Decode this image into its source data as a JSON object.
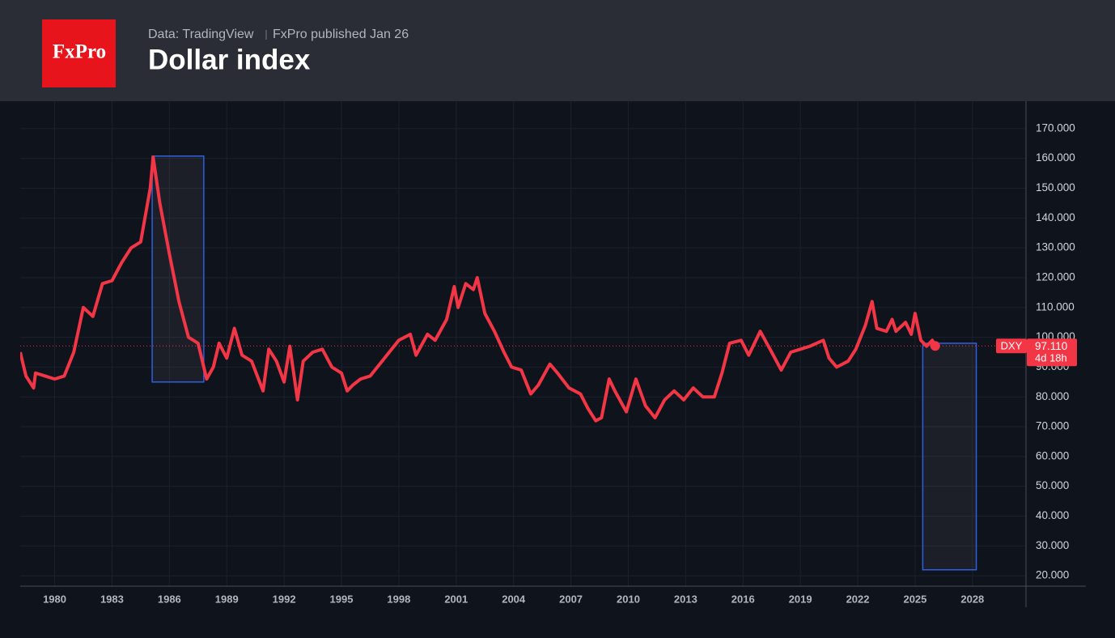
{
  "logo": "FxPro",
  "chart_data": {
    "type": "line",
    "source": "Data: TradingView",
    "subtitle": "FxPro published Jan 26",
    "title": "Dollar index",
    "xlim": [
      1978.2,
      2030.8
    ],
    "ylim": [
      16.5,
      179.2
    ],
    "xticks": [
      1980,
      1983,
      1986,
      1989,
      1992,
      1995,
      1998,
      2001,
      2004,
      2007,
      2010,
      2013,
      2016,
      2019,
      2022,
      2025,
      2028
    ],
    "yticks": [
      {
        "value": 20,
        "label": "20.000"
      },
      {
        "value": 30,
        "label": "30.000"
      },
      {
        "value": 40,
        "label": "40.000"
      },
      {
        "value": 50,
        "label": "50.000"
      },
      {
        "value": 60,
        "label": "60.000"
      },
      {
        "value": 70,
        "label": "70.000"
      },
      {
        "value": 80,
        "label": "80.000"
      },
      {
        "value": 90,
        "label": "90.000"
      },
      {
        "value": 100,
        "label": "100.000"
      },
      {
        "value": 110,
        "label": "110.000"
      },
      {
        "value": 120,
        "label": "120.000"
      },
      {
        "value": 130,
        "label": "130.000"
      },
      {
        "value": 140,
        "label": "140.000"
      },
      {
        "value": 150,
        "label": "150.000"
      },
      {
        "value": 160,
        "label": "160.000"
      },
      {
        "value": 170,
        "label": "170.000"
      }
    ],
    "grid": true,
    "series": [
      {
        "name": "DXY",
        "color": "#f23645",
        "last_label": "97.110",
        "countdown": "4d 18h",
        "x": [
          1978.2,
          1978.5,
          1978.9,
          1979.0,
          1979.5,
          1980.0,
          1980.5,
          1981.0,
          1981.5,
          1982.0,
          1982.5,
          1983.0,
          1983.5,
          1984.0,
          1984.5,
          1985.0,
          1985.15,
          1985.5,
          1986.0,
          1986.5,
          1987.0,
          1987.5,
          1987.95,
          1988.3,
          1988.6,
          1989.0,
          1989.4,
          1989.8,
          1990.3,
          1990.9,
          1991.2,
          1991.6,
          1992.0,
          1992.3,
          1992.7,
          1993.0,
          1993.5,
          1994.0,
          1994.5,
          1995.0,
          1995.3,
          1995.6,
          1996.0,
          1996.5,
          1997.0,
          1997.5,
          1998.0,
          1998.6,
          1998.9,
          1999.5,
          1999.9,
          2000.5,
          2000.9,
          2001.1,
          2001.5,
          2001.9,
          2002.1,
          2002.5,
          2003.0,
          2003.5,
          2003.9,
          2004.4,
          2004.9,
          2005.3,
          2005.9,
          2006.3,
          2006.9,
          2007.5,
          2007.9,
          2008.3,
          2008.6,
          2009.0,
          2009.3,
          2009.9,
          2010.4,
          2010.9,
          2011.4,
          2011.9,
          2012.4,
          2012.9,
          2013.4,
          2013.9,
          2014.5,
          2014.9,
          2015.3,
          2015.9,
          2016.3,
          2016.9,
          2017.5,
          2018.0,
          2018.5,
          2019.0,
          2019.5,
          2020.2,
          2020.5,
          2020.9,
          2021.5,
          2021.9,
          2022.4,
          2022.75,
          2023.0,
          2023.5,
          2023.8,
          2024.0,
          2024.5,
          2024.8,
          2025.0,
          2025.3,
          2025.6,
          2025.9,
          2026.05
        ],
        "values": [
          95,
          87,
          83,
          88,
          87,
          86,
          87,
          95,
          110,
          107,
          118,
          119,
          125,
          130,
          132,
          150,
          160.5,
          145,
          128,
          112,
          100,
          98,
          86,
          90,
          98,
          93,
          103,
          94,
          92,
          82,
          96,
          92,
          85,
          97,
          79,
          92,
          95,
          96,
          90,
          88,
          82,
          84,
          86,
          87,
          91,
          95,
          99,
          101,
          94,
          101,
          99,
          106,
          117,
          110,
          118,
          116,
          120,
          108,
          102,
          95,
          90,
          89,
          81,
          84,
          91,
          88,
          83,
          81,
          76,
          72,
          73,
          86,
          82,
          75,
          86,
          77,
          73,
          79,
          82,
          79,
          83,
          80,
          80,
          88,
          98,
          99,
          94,
          102,
          95,
          89,
          95,
          96,
          97,
          99,
          93,
          90,
          92,
          96,
          104,
          112,
          103,
          102,
          106,
          102,
          105,
          101,
          108,
          99,
          97,
          99,
          97.11
        ]
      }
    ],
    "boxes": [
      {
        "x": [
          1985.1,
          1987.8
        ],
        "y": [
          85,
          160.8
        ]
      },
      {
        "x": [
          2025.4,
          2028.2
        ],
        "y": [
          22,
          98
        ]
      }
    ]
  }
}
